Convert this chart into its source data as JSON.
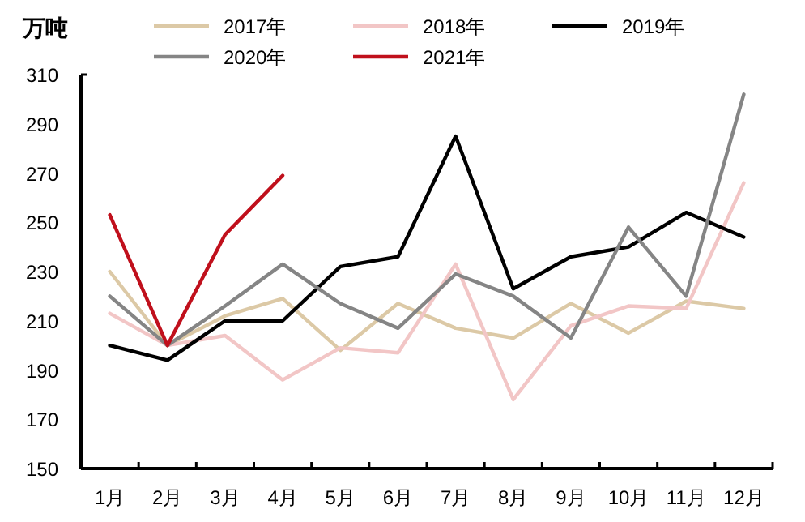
{
  "chart_data": {
    "type": "line",
    "ylabel": "万吨",
    "categories": [
      "1月",
      "2月",
      "3月",
      "4月",
      "5月",
      "6月",
      "7月",
      "8月",
      "9月",
      "10月",
      "11月",
      "12月"
    ],
    "series": [
      {
        "name": "2017年",
        "color": "#dcc9a6",
        "values": [
          230,
          200,
          212,
          219,
          198,
          217,
          207,
          203,
          217,
          205,
          218,
          215
        ]
      },
      {
        "name": "2018年",
        "color": "#f2c6c6",
        "values": [
          213,
          200,
          204,
          186,
          199,
          197,
          233,
          178,
          208,
          216,
          215,
          266
        ]
      },
      {
        "name": "2019年",
        "color": "#000000",
        "values": [
          200,
          194,
          210,
          210,
          232,
          236,
          285,
          223,
          236,
          240,
          254,
          244
        ]
      },
      {
        "name": "2020年",
        "color": "#858585",
        "values": [
          220,
          200,
          216,
          233,
          217,
          207,
          229,
          220,
          203,
          248,
          220,
          302
        ]
      },
      {
        "name": "2021年",
        "color": "#c0101c",
        "values": [
          253,
          200,
          245,
          269,
          null,
          null,
          null,
          null,
          null,
          null,
          null,
          null
        ]
      }
    ],
    "ylim": [
      150,
      310
    ],
    "yticks": [
      150,
      170,
      190,
      210,
      230,
      250,
      270,
      290,
      310
    ],
    "grid": false,
    "legend": "top",
    "marker": "none",
    "line_style": "solid"
  }
}
